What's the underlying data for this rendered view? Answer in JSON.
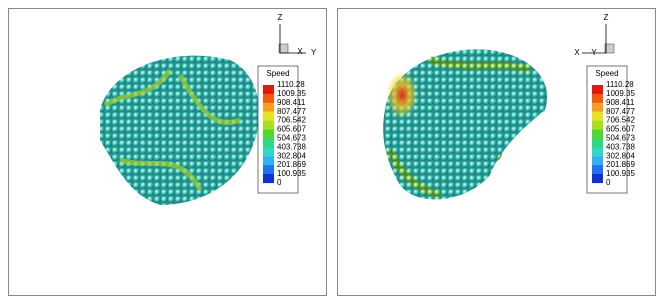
{
  "panels": [
    {
      "axes": {
        "z": "Z",
        "x": "X",
        "y": "Y"
      },
      "legend": {
        "title": "Speed",
        "labels": [
          "1110.28",
          "1009.35",
          "908.411",
          "807.477",
          "706.542",
          "605.607",
          "504.673",
          "403.738",
          "302.804",
          "201.869",
          "100.935",
          "0"
        ]
      }
    },
    {
      "axes": {
        "z": "Z",
        "x": "X",
        "y": "Y"
      },
      "legend": {
        "title": "Speed",
        "labels": [
          "1110.28",
          "1009.35",
          "908.411",
          "807.477",
          "706.542",
          "605.607",
          "504.673",
          "403.738",
          "302.804",
          "201.869",
          "100.935",
          "0"
        ]
      }
    }
  ]
}
